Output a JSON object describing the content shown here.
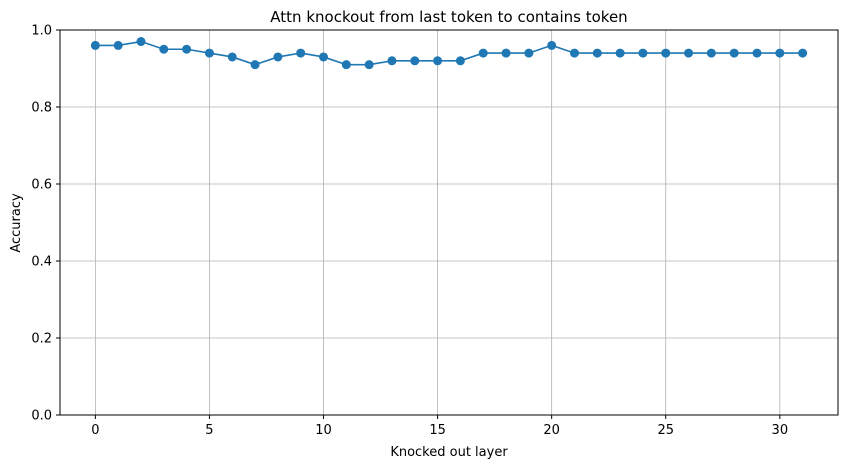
{
  "chart_data": {
    "type": "line",
    "title": "Attn knockout from last token to contains token",
    "xlabel": "Knocked out layer",
    "ylabel": "Accuracy",
    "xlim": [
      -1.55,
      32.55
    ],
    "ylim": [
      0.0,
      1.0
    ],
    "xticks": [
      0,
      5,
      10,
      15,
      20,
      25,
      30
    ],
    "yticks": [
      0.0,
      0.2,
      0.4,
      0.6,
      0.8,
      1.0
    ],
    "xtick_labels": [
      "0",
      "5",
      "10",
      "15",
      "20",
      "25",
      "30"
    ],
    "ytick_labels": [
      "0.0",
      "0.2",
      "0.4",
      "0.6",
      "0.8",
      "1.0"
    ],
    "grid": true,
    "marker": "circle",
    "color": "#1f77b4",
    "x": [
      0,
      1,
      2,
      3,
      4,
      5,
      6,
      7,
      8,
      9,
      10,
      11,
      12,
      13,
      14,
      15,
      16,
      17,
      18,
      19,
      20,
      21,
      22,
      23,
      24,
      25,
      26,
      27,
      28,
      29,
      30,
      31
    ],
    "series": [
      {
        "values": [
          0.96,
          0.96,
          0.97,
          0.95,
          0.95,
          0.94,
          0.93,
          0.91,
          0.93,
          0.94,
          0.93,
          0.91,
          0.91,
          0.92,
          0.92,
          0.92,
          0.92,
          0.94,
          0.94,
          0.94,
          0.96,
          0.94,
          0.94,
          0.94,
          0.94,
          0.94,
          0.94,
          0.94,
          0.94,
          0.94,
          0.94,
          0.94
        ]
      }
    ]
  }
}
